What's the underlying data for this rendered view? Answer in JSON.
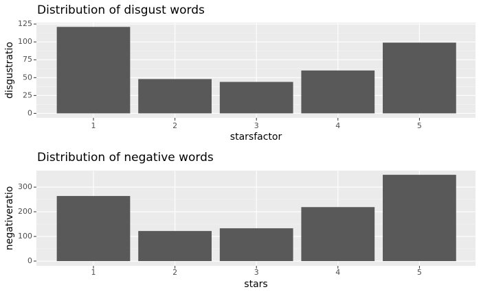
{
  "chart_data": [
    {
      "type": "bar",
      "title": "Distribution of disgust words",
      "x_label": "starsfactor",
      "y_label": "disgustratio",
      "categories": [
        "1",
        "2",
        "3",
        "4",
        "5"
      ],
      "values": [
        121,
        48,
        44,
        60,
        99
      ],
      "color": "#595959",
      "ylim": [
        -6.3,
        127
      ],
      "yticks": [
        0,
        25,
        50,
        75,
        100,
        125
      ],
      "grid": true
    },
    {
      "type": "bar",
      "title": "Distribution of negative words",
      "x_label": "stars",
      "y_label": "negativeratio",
      "categories": [
        "1",
        "2",
        "3",
        "4",
        "5"
      ],
      "values": [
        264,
        122,
        133,
        219,
        350
      ],
      "color": "#595959",
      "ylim": [
        -19.4,
        367
      ],
      "yticks": [
        0,
        100,
        200,
        300
      ],
      "grid": true
    }
  ]
}
